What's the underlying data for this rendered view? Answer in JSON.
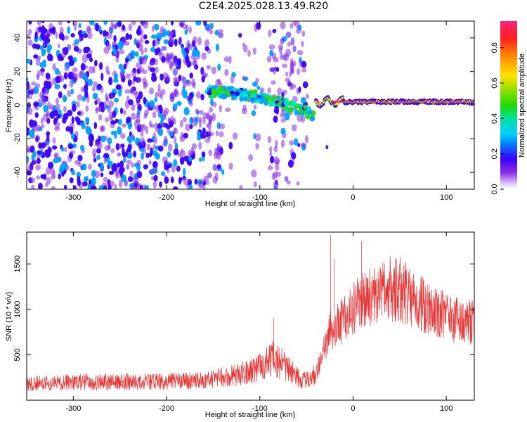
{
  "title": "C2E4.2025.028.13.49.R20",
  "colors": {
    "snr_line": "#e83535",
    "frame": "#000000",
    "background": "#ffffff",
    "colormap": [
      "#ffffff",
      "#d9c8ff",
      "#8a2be2",
      "#3a00ff",
      "#00a0ff",
      "#00e5c0",
      "#2cd800",
      "#b6e000",
      "#ffe000",
      "#ff8a00",
      "#ff2020",
      "#ff1f7a"
    ]
  },
  "chart_data": [
    {
      "type": "heatmap",
      "name": "spectrogram",
      "xlabel": "Height of straight line (km)",
      "ylabel": "Frequency (Hz)",
      "xlim": [
        -350,
        130
      ],
      "ylim": [
        -50,
        50
      ],
      "xticks": [
        -300,
        -200,
        -100,
        0,
        100
      ],
      "yticks": [
        -40,
        -20,
        0,
        20,
        40
      ],
      "colorbar": {
        "label": "Normalized spectral amplitude",
        "range": [
          0.0,
          0.95
        ],
        "ticks": [
          "0.0",
          "0.2",
          "0.4",
          "0.6",
          "0.8"
        ]
      },
      "features": [
        {
          "label": "dispersed-arc",
          "x_from": -160,
          "x_to": -45,
          "freq_from": 8,
          "freq_to": -8,
          "amplitude": 0.3
        },
        {
          "label": "narrow-band",
          "x_from": -40,
          "x_to": 130,
          "frequency": 2,
          "amplitude": 0.75
        }
      ]
    },
    {
      "type": "line",
      "name": "snr",
      "xlabel": "Height of straight line (km)",
      "ylabel": "SNR (10 * v/v)",
      "xlim": [
        -350,
        130
      ],
      "ylim": [
        0,
        1850
      ],
      "xticks": [
        -300,
        -200,
        -100,
        0,
        100
      ],
      "yticks": [
        500,
        1000,
        1500
      ],
      "series": [
        {
          "name": "SNR",
          "x": [
            -350,
            -300,
            -250,
            -200,
            -160,
            -130,
            -110,
            -95,
            -85,
            -75,
            -65,
            -55,
            -45,
            -38,
            -32,
            -28,
            -24,
            -20,
            -15,
            -10,
            -5,
            0,
            10,
            20,
            30,
            40,
            50,
            60,
            70,
            80,
            90,
            100,
            110,
            120,
            130
          ],
          "y": [
            180,
            200,
            200,
            210,
            215,
            270,
            320,
            400,
            450,
            400,
            300,
            210,
            230,
            330,
            520,
            680,
            760,
            790,
            830,
            880,
            940,
            1000,
            1080,
            1150,
            1200,
            1230,
            1220,
            1150,
            1080,
            1020,
            960,
            920,
            880,
            860,
            840
          ],
          "spikes": [
            {
              "x": -24,
              "y": 1820
            },
            {
              "x": -20,
              "y": 1560
            },
            {
              "x": 9,
              "y": 1750
            },
            {
              "x": -85,
              "y": 900
            }
          ]
        }
      ]
    }
  ]
}
